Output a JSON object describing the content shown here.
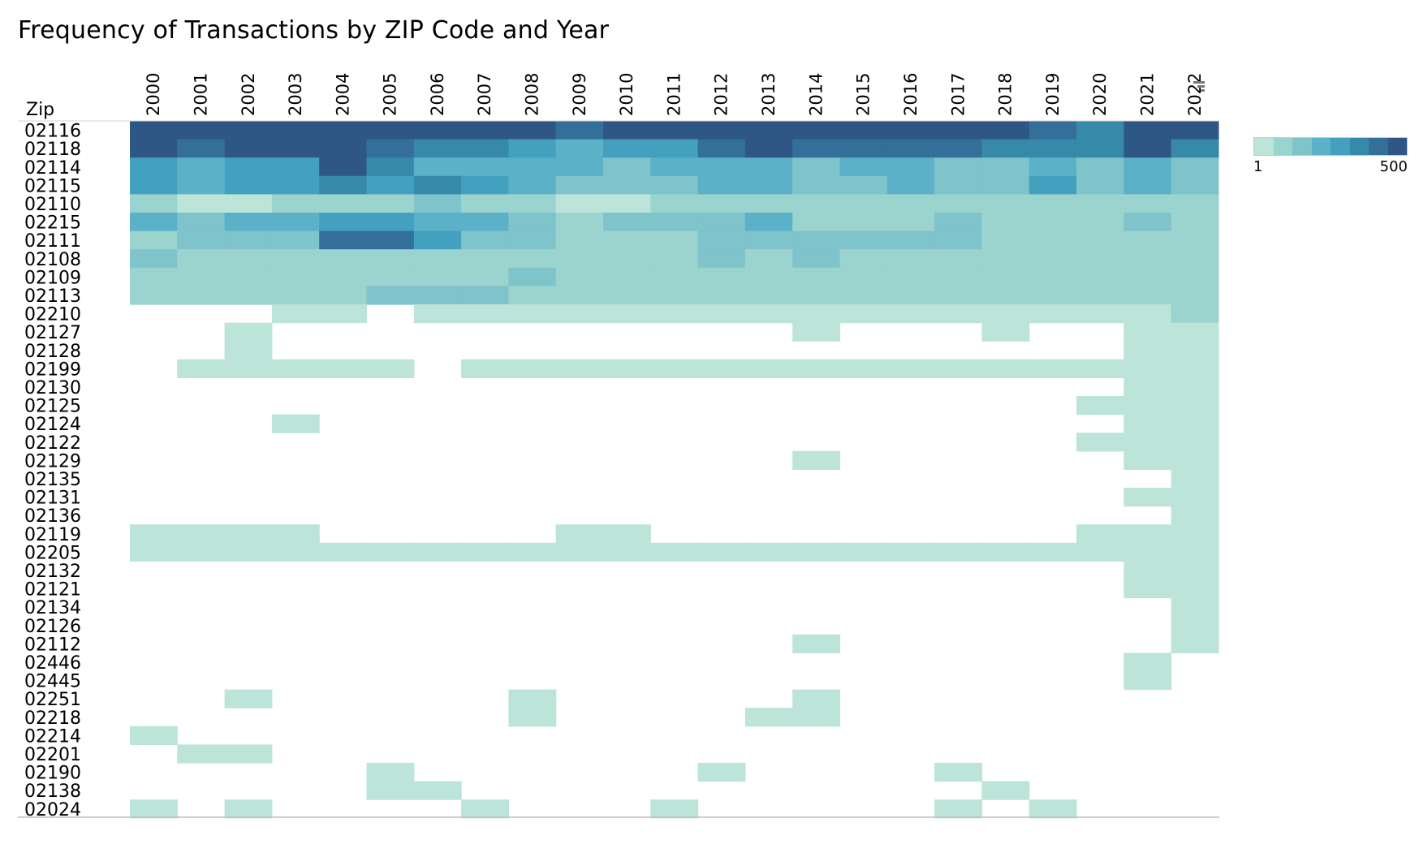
{
  "chart_data": {
    "type": "heatmap",
    "title": "Frequency of Transactions by ZIP Code and Year",
    "row_header": "Zip",
    "columns": [
      "2000",
      "2001",
      "2002",
      "2003",
      "2004",
      "2005",
      "2006",
      "2007",
      "2008",
      "2009",
      "2010",
      "2011",
      "2012",
      "2013",
      "2014",
      "2015",
      "2016",
      "2017",
      "2018",
      "2019",
      "2020",
      "2021",
      "2022"
    ],
    "rows": [
      "02116",
      "02118",
      "02114",
      "02115",
      "02110",
      "02215",
      "02111",
      "02108",
      "02109",
      "02113",
      "02210",
      "02127",
      "02128",
      "02199",
      "02130",
      "02125",
      "02124",
      "02122",
      "02129",
      "02135",
      "02131",
      "02136",
      "02119",
      "02205",
      "02132",
      "02121",
      "02134",
      "02126",
      "02112",
      "02446",
      "02445",
      "02251",
      "02218",
      "02214",
      "02201",
      "02190",
      "02138",
      "02024"
    ],
    "level_note": "0 = no data; 1-8 = color bin from light (1) to dark (8)",
    "levels": [
      [
        8,
        8,
        8,
        8,
        8,
        8,
        8,
        8,
        8,
        7,
        8,
        8,
        8,
        8,
        8,
        8,
        8,
        8,
        8,
        7,
        6,
        8,
        8
      ],
      [
        8,
        7,
        8,
        8,
        8,
        7,
        6,
        6,
        5,
        4,
        5,
        5,
        7,
        8,
        7,
        7,
        7,
        7,
        6,
        6,
        6,
        8,
        6
      ],
      [
        5,
        4,
        5,
        5,
        8,
        6,
        4,
        4,
        4,
        4,
        3,
        4,
        4,
        4,
        3,
        4,
        4,
        3,
        3,
        4,
        3,
        4,
        3
      ],
      [
        5,
        4,
        5,
        5,
        6,
        5,
        6,
        5,
        4,
        3,
        3,
        3,
        4,
        4,
        3,
        3,
        4,
        3,
        3,
        5,
        3,
        4,
        3
      ],
      [
        2,
        1,
        1,
        2,
        2,
        2,
        3,
        2,
        2,
        1,
        1,
        2,
        2,
        2,
        2,
        2,
        2,
        2,
        2,
        2,
        2,
        2,
        2
      ],
      [
        4,
        3,
        4,
        4,
        5,
        5,
        4,
        4,
        3,
        2,
        3,
        3,
        3,
        4,
        2,
        2,
        2,
        3,
        2,
        2,
        2,
        3,
        2
      ],
      [
        2,
        3,
        3,
        3,
        7,
        7,
        5,
        3,
        3,
        2,
        2,
        2,
        3,
        3,
        3,
        3,
        3,
        3,
        2,
        2,
        2,
        2,
        2
      ],
      [
        3,
        2,
        2,
        2,
        2,
        2,
        2,
        2,
        2,
        2,
        2,
        2,
        3,
        2,
        3,
        2,
        2,
        2,
        2,
        2,
        2,
        2,
        2
      ],
      [
        2,
        2,
        2,
        2,
        2,
        2,
        2,
        2,
        3,
        2,
        2,
        2,
        2,
        2,
        2,
        2,
        2,
        2,
        2,
        2,
        2,
        2,
        2
      ],
      [
        2,
        2,
        2,
        2,
        2,
        3,
        3,
        3,
        2,
        2,
        2,
        2,
        2,
        2,
        2,
        2,
        2,
        2,
        2,
        2,
        2,
        2,
        2
      ],
      [
        0,
        0,
        0,
        1,
        1,
        0,
        1,
        1,
        1,
        1,
        1,
        1,
        1,
        1,
        1,
        1,
        1,
        1,
        1,
        1,
        1,
        1,
        2
      ],
      [
        0,
        0,
        1,
        0,
        0,
        0,
        0,
        0,
        0,
        0,
        0,
        0,
        0,
        0,
        1,
        0,
        0,
        0,
        1,
        0,
        0,
        1,
        1
      ],
      [
        0,
        0,
        1,
        0,
        0,
        0,
        0,
        0,
        0,
        0,
        0,
        0,
        0,
        0,
        0,
        0,
        0,
        0,
        0,
        0,
        0,
        1,
        1
      ],
      [
        0,
        1,
        1,
        1,
        1,
        1,
        0,
        1,
        1,
        1,
        1,
        1,
        1,
        1,
        1,
        1,
        1,
        1,
        1,
        1,
        1,
        1,
        1
      ],
      [
        0,
        0,
        0,
        0,
        0,
        0,
        0,
        0,
        0,
        0,
        0,
        0,
        0,
        0,
        0,
        0,
        0,
        0,
        0,
        0,
        0,
        1,
        1
      ],
      [
        0,
        0,
        0,
        0,
        0,
        0,
        0,
        0,
        0,
        0,
        0,
        0,
        0,
        0,
        0,
        0,
        0,
        0,
        0,
        0,
        1,
        1,
        1
      ],
      [
        0,
        0,
        0,
        1,
        0,
        0,
        0,
        0,
        0,
        0,
        0,
        0,
        0,
        0,
        0,
        0,
        0,
        0,
        0,
        0,
        0,
        1,
        1
      ],
      [
        0,
        0,
        0,
        0,
        0,
        0,
        0,
        0,
        0,
        0,
        0,
        0,
        0,
        0,
        0,
        0,
        0,
        0,
        0,
        0,
        1,
        1,
        1
      ],
      [
        0,
        0,
        0,
        0,
        0,
        0,
        0,
        0,
        0,
        0,
        0,
        0,
        0,
        0,
        1,
        0,
        0,
        0,
        0,
        0,
        0,
        1,
        1
      ],
      [
        0,
        0,
        0,
        0,
        0,
        0,
        0,
        0,
        0,
        0,
        0,
        0,
        0,
        0,
        0,
        0,
        0,
        0,
        0,
        0,
        0,
        0,
        1
      ],
      [
        0,
        0,
        0,
        0,
        0,
        0,
        0,
        0,
        0,
        0,
        0,
        0,
        0,
        0,
        0,
        0,
        0,
        0,
        0,
        0,
        0,
        1,
        1
      ],
      [
        0,
        0,
        0,
        0,
        0,
        0,
        0,
        0,
        0,
        0,
        0,
        0,
        0,
        0,
        0,
        0,
        0,
        0,
        0,
        0,
        0,
        0,
        1
      ],
      [
        1,
        1,
        1,
        1,
        0,
        0,
        0,
        0,
        0,
        1,
        1,
        0,
        0,
        0,
        0,
        0,
        0,
        0,
        0,
        0,
        1,
        1,
        1
      ],
      [
        1,
        1,
        1,
        1,
        1,
        1,
        1,
        1,
        1,
        1,
        1,
        1,
        1,
        1,
        1,
        1,
        1,
        1,
        1,
        1,
        1,
        1,
        1
      ],
      [
        0,
        0,
        0,
        0,
        0,
        0,
        0,
        0,
        0,
        0,
        0,
        0,
        0,
        0,
        0,
        0,
        0,
        0,
        0,
        0,
        0,
        1,
        1
      ],
      [
        0,
        0,
        0,
        0,
        0,
        0,
        0,
        0,
        0,
        0,
        0,
        0,
        0,
        0,
        0,
        0,
        0,
        0,
        0,
        0,
        0,
        1,
        1
      ],
      [
        0,
        0,
        0,
        0,
        0,
        0,
        0,
        0,
        0,
        0,
        0,
        0,
        0,
        0,
        0,
        0,
        0,
        0,
        0,
        0,
        0,
        0,
        1
      ],
      [
        0,
        0,
        0,
        0,
        0,
        0,
        0,
        0,
        0,
        0,
        0,
        0,
        0,
        0,
        0,
        0,
        0,
        0,
        0,
        0,
        0,
        0,
        1
      ],
      [
        0,
        0,
        0,
        0,
        0,
        0,
        0,
        0,
        0,
        0,
        0,
        0,
        0,
        0,
        1,
        0,
        0,
        0,
        0,
        0,
        0,
        0,
        1
      ],
      [
        0,
        0,
        0,
        0,
        0,
        0,
        0,
        0,
        0,
        0,
        0,
        0,
        0,
        0,
        0,
        0,
        0,
        0,
        0,
        0,
        0,
        1,
        0
      ],
      [
        0,
        0,
        0,
        0,
        0,
        0,
        0,
        0,
        0,
        0,
        0,
        0,
        0,
        0,
        0,
        0,
        0,
        0,
        0,
        0,
        0,
        1,
        0
      ],
      [
        0,
        0,
        1,
        0,
        0,
        0,
        0,
        0,
        1,
        0,
        0,
        0,
        0,
        0,
        1,
        0,
        0,
        0,
        0,
        0,
        0,
        0,
        0
      ],
      [
        0,
        0,
        0,
        0,
        0,
        0,
        0,
        0,
        1,
        0,
        0,
        0,
        0,
        1,
        1,
        0,
        0,
        0,
        0,
        0,
        0,
        0,
        0
      ],
      [
        1,
        0,
        0,
        0,
        0,
        0,
        0,
        0,
        0,
        0,
        0,
        0,
        0,
        0,
        0,
        0,
        0,
        0,
        0,
        0,
        0,
        0,
        0
      ],
      [
        0,
        1,
        1,
        0,
        0,
        0,
        0,
        0,
        0,
        0,
        0,
        0,
        0,
        0,
        0,
        0,
        0,
        0,
        0,
        0,
        0,
        0,
        0
      ],
      [
        0,
        0,
        0,
        0,
        0,
        1,
        0,
        0,
        0,
        0,
        0,
        0,
        1,
        0,
        0,
        0,
        0,
        1,
        0,
        0,
        0,
        0,
        0
      ],
      [
        0,
        0,
        0,
        0,
        0,
        1,
        1,
        0,
        0,
        0,
        0,
        0,
        0,
        0,
        0,
        0,
        0,
        0,
        1,
        0,
        0,
        0,
        0
      ],
      [
        1,
        0,
        1,
        0,
        0,
        0,
        0,
        1,
        0,
        0,
        0,
        1,
        0,
        0,
        0,
        0,
        0,
        1,
        0,
        1,
        0,
        0,
        0
      ]
    ],
    "color_scale": [
      "#bce4d8",
      "#9bd3cf",
      "#7fc3cb",
      "#5bb1c7",
      "#44a0bf",
      "#3789a9",
      "#336f99",
      "#2f5785"
    ],
    "legend": {
      "min_label": "1",
      "max_label": "500"
    }
  }
}
